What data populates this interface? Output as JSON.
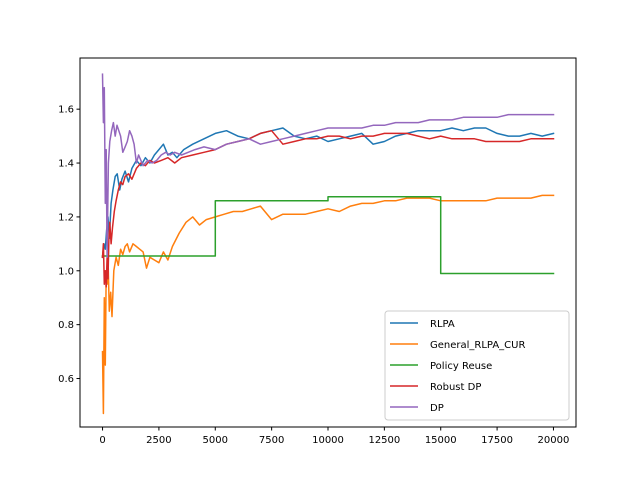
{
  "chart_data": {
    "type": "line",
    "title": "",
    "xlabel": "",
    "ylabel": "",
    "xlim": [
      -1000,
      21000
    ],
    "ylim": [
      0.42,
      1.79
    ],
    "xticks": [
      0,
      2500,
      5000,
      7500,
      10000,
      12500,
      15000,
      17500,
      20000
    ],
    "xtick_labels": [
      "0",
      "2500",
      "5000",
      "7500",
      "10000",
      "12500",
      "15000",
      "17500",
      "20000"
    ],
    "yticks": [
      0.6,
      0.8,
      1.0,
      1.2,
      1.4,
      1.6
    ],
    "ytick_labels": [
      "0.6",
      "0.8",
      "1.0",
      "1.2",
      "1.4",
      "1.6"
    ],
    "grid": false,
    "legend_position": "lower-right",
    "series": [
      {
        "name": "RLPA",
        "color": "#1f77b4",
        "x": [
          0,
          60,
          120,
          180,
          240,
          300,
          380,
          460,
          560,
          650,
          760,
          860,
          1000,
          1150,
          1300,
          1500,
          1700,
          1900,
          2100,
          2300,
          2500,
          2700,
          2900,
          3100,
          3300,
          3600,
          4000,
          4500,
          5000,
          5500,
          6000,
          6500,
          7000,
          7500,
          8000,
          8500,
          9000,
          9500,
          10000,
          10500,
          11000,
          11500,
          12000,
          12500,
          13000,
          13500,
          14000,
          14500,
          15000,
          15500,
          16000,
          16500,
          17000,
          17500,
          18000,
          18500,
          19000,
          19500,
          20000
        ],
        "y": [
          1.05,
          1.1,
          1.08,
          1.15,
          1.2,
          1.12,
          1.25,
          1.3,
          1.35,
          1.36,
          1.3,
          1.34,
          1.37,
          1.33,
          1.38,
          1.41,
          1.39,
          1.42,
          1.4,
          1.43,
          1.45,
          1.47,
          1.43,
          1.44,
          1.42,
          1.45,
          1.47,
          1.49,
          1.51,
          1.52,
          1.5,
          1.49,
          1.51,
          1.52,
          1.53,
          1.5,
          1.49,
          1.5,
          1.48,
          1.49,
          1.5,
          1.51,
          1.47,
          1.48,
          1.5,
          1.51,
          1.52,
          1.52,
          1.52,
          1.53,
          1.52,
          1.53,
          1.53,
          1.51,
          1.5,
          1.5,
          1.51,
          1.5,
          1.51
        ]
      },
      {
        "name": "General_RLPA_CUR",
        "color": "#ff7f0e",
        "x": [
          0,
          40,
          80,
          120,
          160,
          200,
          250,
          300,
          360,
          420,
          500,
          600,
          700,
          800,
          900,
          1000,
          1100,
          1200,
          1350,
          1500,
          1650,
          1800,
          1950,
          2100,
          2300,
          2500,
          2700,
          2900,
          3100,
          3400,
          3700,
          4000,
          4300,
          4600,
          5000,
          5400,
          5800,
          6200,
          6600,
          7000,
          7500,
          8000,
          8500,
          9000,
          9500,
          10000,
          10500,
          11000,
          11500,
          12000,
          12500,
          13000,
          13500,
          14000,
          14500,
          15000,
          15500,
          16000,
          16500,
          17000,
          17500,
          18000,
          18500,
          19000,
          19500,
          20000
        ],
        "y": [
          0.7,
          0.47,
          0.9,
          0.65,
          1.0,
          0.95,
          1.02,
          0.85,
          0.92,
          0.83,
          1.0,
          1.05,
          1.02,
          1.08,
          1.06,
          1.09,
          1.1,
          1.07,
          1.1,
          1.09,
          1.08,
          1.07,
          1.01,
          1.05,
          1.04,
          1.03,
          1.07,
          1.04,
          1.09,
          1.14,
          1.18,
          1.2,
          1.17,
          1.19,
          1.2,
          1.21,
          1.22,
          1.22,
          1.23,
          1.24,
          1.19,
          1.21,
          1.21,
          1.21,
          1.22,
          1.23,
          1.22,
          1.24,
          1.25,
          1.25,
          1.26,
          1.26,
          1.27,
          1.27,
          1.27,
          1.26,
          1.26,
          1.26,
          1.26,
          1.26,
          1.27,
          1.27,
          1.27,
          1.27,
          1.28,
          1.28
        ]
      },
      {
        "name": "Policy Reuse",
        "color": "#2ca02c",
        "x": [
          0,
          5000,
          5000,
          10000,
          10000,
          15000,
          15000,
          20000
        ],
        "y": [
          1.055,
          1.055,
          1.26,
          1.26,
          1.275,
          1.275,
          0.99,
          0.99
        ]
      },
      {
        "name": "Robust DP",
        "color": "#d62728",
        "x": [
          0,
          40,
          80,
          120,
          160,
          200,
          240,
          280,
          320,
          380,
          440,
          520,
          600,
          700,
          800,
          900,
          1000,
          1150,
          1300,
          1500,
          1700,
          1900,
          2100,
          2300,
          2600,
          2900,
          3200,
          3500,
          4000,
          4500,
          5000,
          5500,
          6000,
          6500,
          7000,
          7500,
          8000,
          8500,
          9000,
          9500,
          10000,
          10500,
          11000,
          11500,
          12000,
          12500,
          13000,
          13500,
          14000,
          14500,
          15000,
          15500,
          16000,
          16500,
          17000,
          17500,
          18000,
          18500,
          19000,
          19500,
          20000
        ],
        "y": [
          1.05,
          1.1,
          0.95,
          1.0,
          0.94,
          1.05,
          0.97,
          1.12,
          1.18,
          1.1,
          1.16,
          1.22,
          1.26,
          1.3,
          1.33,
          1.32,
          1.35,
          1.36,
          1.34,
          1.38,
          1.4,
          1.39,
          1.41,
          1.4,
          1.41,
          1.42,
          1.4,
          1.42,
          1.43,
          1.44,
          1.45,
          1.47,
          1.48,
          1.49,
          1.51,
          1.52,
          1.47,
          1.48,
          1.49,
          1.49,
          1.5,
          1.5,
          1.49,
          1.5,
          1.5,
          1.51,
          1.51,
          1.51,
          1.5,
          1.49,
          1.5,
          1.49,
          1.49,
          1.49,
          1.48,
          1.48,
          1.48,
          1.48,
          1.49,
          1.49,
          1.49
        ]
      },
      {
        "name": "DP",
        "color": "#9467bd",
        "x": [
          0,
          40,
          80,
          120,
          160,
          200,
          260,
          320,
          400,
          480,
          560,
          640,
          720,
          800,
          900,
          1000,
          1100,
          1200,
          1300,
          1400,
          1500,
          1600,
          1700,
          1800,
          1900,
          2000,
          2200,
          2400,
          2600,
          2800,
          3000,
          3200,
          3500,
          3800,
          4100,
          4500,
          5000,
          5500,
          6000,
          6500,
          7000,
          7500,
          8000,
          8500,
          9000,
          9500,
          10000,
          10500,
          11000,
          11500,
          12000,
          12500,
          13000,
          13500,
          14000,
          14500,
          15000,
          15500,
          16000,
          16500,
          17000,
          17500,
          18000,
          18500,
          19000,
          19500,
          20000
        ],
        "y": [
          1.73,
          1.55,
          1.68,
          1.25,
          1.45,
          1.05,
          1.4,
          1.48,
          1.52,
          1.55,
          1.5,
          1.54,
          1.52,
          1.5,
          1.44,
          1.46,
          1.48,
          1.52,
          1.5,
          1.47,
          1.4,
          1.43,
          1.41,
          1.39,
          1.4,
          1.41,
          1.4,
          1.41,
          1.43,
          1.44,
          1.43,
          1.44,
          1.43,
          1.44,
          1.45,
          1.46,
          1.45,
          1.47,
          1.48,
          1.49,
          1.47,
          1.48,
          1.49,
          1.5,
          1.51,
          1.52,
          1.53,
          1.53,
          1.53,
          1.53,
          1.54,
          1.54,
          1.55,
          1.55,
          1.55,
          1.56,
          1.56,
          1.56,
          1.57,
          1.57,
          1.57,
          1.57,
          1.58,
          1.58,
          1.58,
          1.58,
          1.58
        ]
      }
    ]
  }
}
